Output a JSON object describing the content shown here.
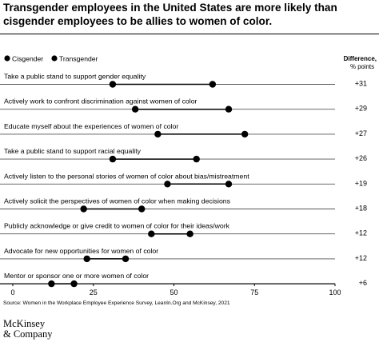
{
  "title": "Transgender employees in the United States are more likely than cisgender employees to be allies to women of color.",
  "source": "Source: Women in the Workplace Employee Experience Survey, LeanIn.Org and McKinsey, 2021",
  "logo": {
    "line1": "McKinsey",
    "line2": "& Company"
  },
  "chart_data": {
    "type": "dot",
    "legend": [
      "Cisgender",
      "Transgender"
    ],
    "diff_header": {
      "line1": "Difference,",
      "line2": "% points"
    },
    "xlim": [
      0,
      100
    ],
    "xticks": [
      "0",
      "25",
      "50",
      "75",
      "100"
    ],
    "colors": {
      "dot": "#000000",
      "line": "#555555",
      "axis": "#000000"
    },
    "rows": [
      {
        "label": "Take a public stand to support gender equality",
        "cisgender": 31,
        "transgender": 62,
        "diff": "+31"
      },
      {
        "label": "Actively work to confront discrimination against women of color",
        "cisgender": 38,
        "transgender": 67,
        "diff": "+29"
      },
      {
        "label": "Educate myself about the experiences of women of color",
        "cisgender": 45,
        "transgender": 72,
        "diff": "+27"
      },
      {
        "label": "Take a public stand to support racial equality",
        "cisgender": 31,
        "transgender": 57,
        "diff": "+26"
      },
      {
        "label": "Actively listen to the personal stories of women of color about bias/mistreatment",
        "cisgender": 48,
        "transgender": 67,
        "diff": "+19"
      },
      {
        "label": "Actively solicit the perspectives of women of color when making decisions",
        "cisgender": 22,
        "transgender": 40,
        "diff": "+18"
      },
      {
        "label": "Publicly acknowledge or give credit to women of color for their ideas/work",
        "cisgender": 43,
        "transgender": 55,
        "diff": "+12"
      },
      {
        "label": "Advocate for new opportunities for women of color",
        "cisgender": 23,
        "transgender": 35,
        "diff": "+12"
      },
      {
        "label": "Mentor or sponsor one or more women of color",
        "cisgender": 12,
        "transgender": 19,
        "diff": "+6"
      }
    ]
  }
}
